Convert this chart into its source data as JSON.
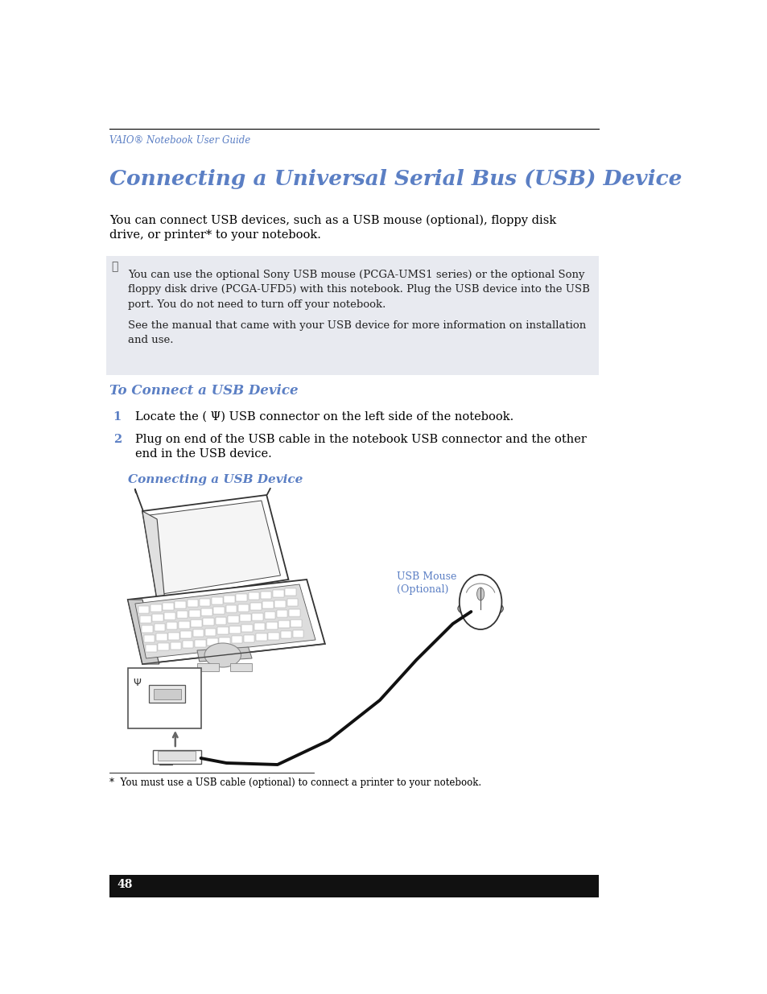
{
  "page_bg": "#ffffff",
  "header_line_color": "#000000",
  "header_text": "VAIO® Notebook User Guide",
  "header_color": "#5b7fc4",
  "title": "Connecting a Universal Serial Bus (USB) Device",
  "title_color": "#5b7fc4",
  "title_fontsize": 19,
  "body_text1_line1": "You can connect USB devices, such as a USB mouse (optional), floppy disk",
  "body_text1_line2": "drive, or printer* to your notebook.",
  "note_bg": "#e8eaf0",
  "note_text_block1": "You can use the optional Sony USB mouse (PCGA-UMS1 series) or the optional Sony\nfloppy disk drive (PCGA-UFD5) with this notebook. Plug the USB device into the USB\nport. You do not need to turn off your notebook.",
  "note_text_block2": "See the manual that came with your USB device for more information on installation\nand use.",
  "subheading": "To Connect a USB Device",
  "subheading_color": "#5b7fc4",
  "step1_num": "1",
  "step1_num_color": "#5b7fc4",
  "step1_text": "Locate the ( Ψ) USB connector on the left side of the notebook.",
  "step2_num": "2",
  "step2_num_color": "#5b7fc4",
  "step2_text_line1": "Plug on end of the USB cable in the notebook USB connector and the other",
  "step2_text_line2": "end in the USB device.",
  "diagram_caption": "Connecting a USB Device",
  "diagram_caption_color": "#5b7fc4",
  "usb_mouse_label_line1": "USB Mouse",
  "usb_mouse_label_line2": "(Optional)",
  "usb_mouse_label_color": "#5b7fc4",
  "footnote": "*  You must use a USB cable (optional) to connect a printer to your notebook.",
  "page_number": "48",
  "body_fontsize": 10.5,
  "note_fontsize": 9.5,
  "step_fontsize": 10.5,
  "caption_fontsize": 9,
  "footnote_fontsize": 8.5,
  "page_num_fontsize": 10
}
